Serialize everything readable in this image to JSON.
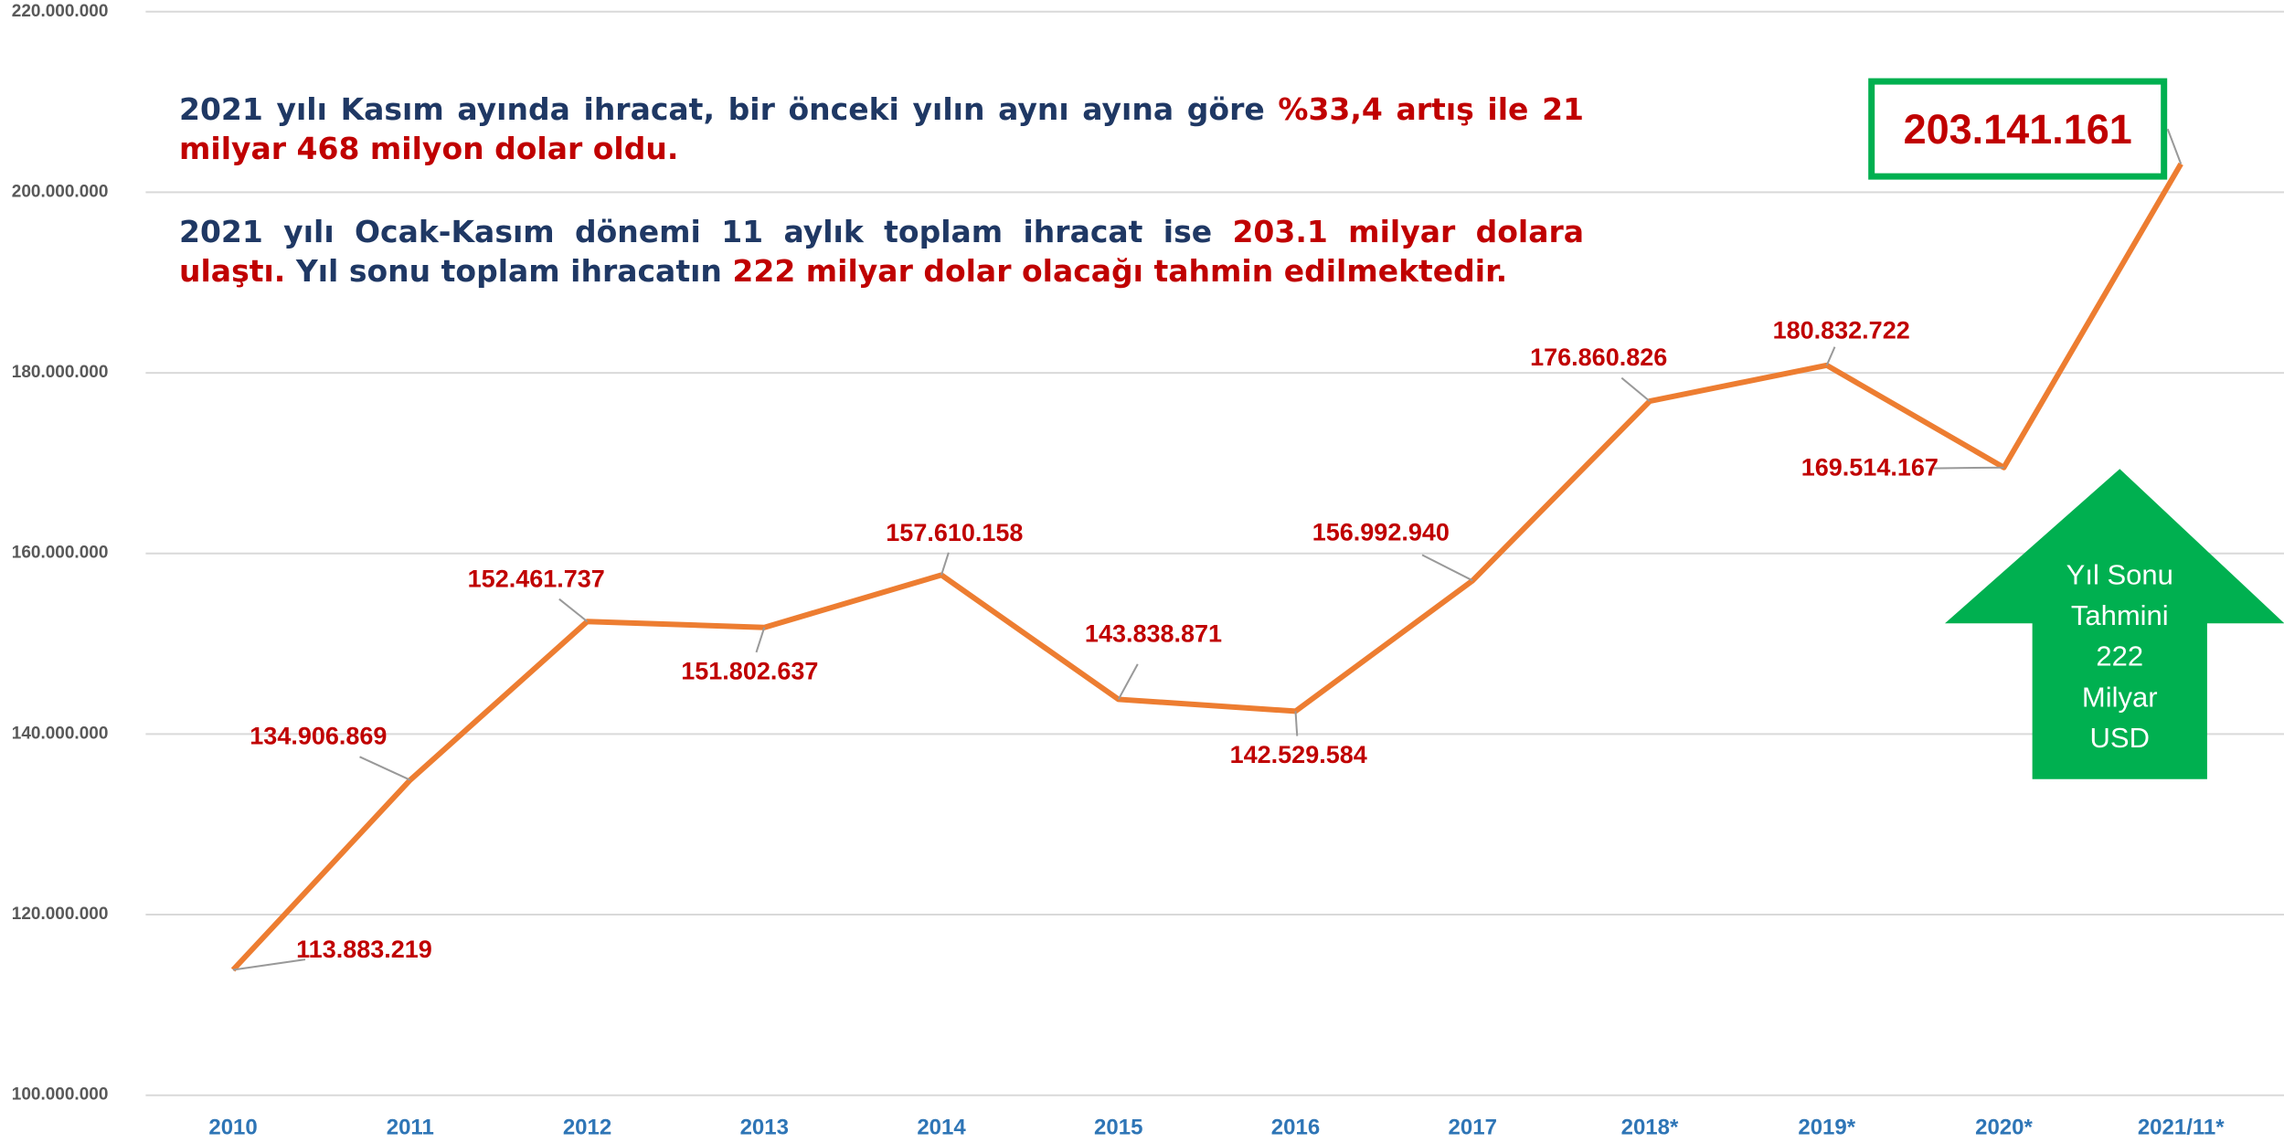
{
  "chart_data": {
    "type": "line",
    "categories": [
      "2010",
      "2011",
      "2012",
      "2013",
      "2014",
      "2015",
      "2016",
      "2017",
      "2018*",
      "2019*",
      "2020*",
      "2021/11*"
    ],
    "values": [
      113883219,
      134906869,
      152461737,
      151802637,
      157610158,
      143838871,
      142529584,
      156992940,
      176860826,
      180832722,
      169514167,
      203141161
    ],
    "value_labels": [
      "113.883.219",
      "134.906.869",
      "152.461.737",
      "151.802.637",
      "157.610.158",
      "143.838.871",
      "142.529.584",
      "156.992.940",
      "176.860.826",
      "180.832.722",
      "169.514.167",
      "203.141.161"
    ],
    "color": "#ed7d31",
    "label_color": "#c00000",
    "highlight_color": "#00b050",
    "ylim": [
      100000000,
      220000000
    ],
    "yticks": [
      {
        "value": 100000000,
        "label": "100.000.000"
      },
      {
        "value": 120000000,
        "label": "120.000.000"
      },
      {
        "value": 140000000,
        "label": "140.000.000"
      },
      {
        "value": 160000000,
        "label": "160.000.000"
      },
      {
        "value": 180000000,
        "label": "180.000.000"
      },
      {
        "value": 200000000,
        "label": "200.000.000"
      },
      {
        "value": 220000000,
        "label": "220.000.000"
      }
    ],
    "grid": true,
    "text_blocks": [
      [
        {
          "text": "2021 yılı Kasım ayında ihracat, bir önceki yılın aynı ayına göre ",
          "color": "#1f3864"
        },
        {
          "text": "%33,4 artış ile 21 milyar 468 milyon dolar oldu.",
          "color": "#c00000"
        }
      ],
      [
        {
          "text": "2021 yılı Ocak-Kasım dönemi 11 aylık toplam ihracat ise ",
          "color": "#1f3864"
        },
        {
          "text": "203.1 milyar dolara ulaştı.",
          "color": "#c00000"
        },
        {
          "text": " Yıl sonu toplam ihracatın ",
          "color": "#1f3864"
        },
        {
          "text": "222 milyar dolar olacağı tahmin edilmektedir.",
          "color": "#c00000"
        }
      ]
    ],
    "arrow_label": [
      "Yıl Sonu",
      "Tahmini",
      "222",
      "Milyar",
      "USD"
    ],
    "arrow_color": "#00b050"
  }
}
